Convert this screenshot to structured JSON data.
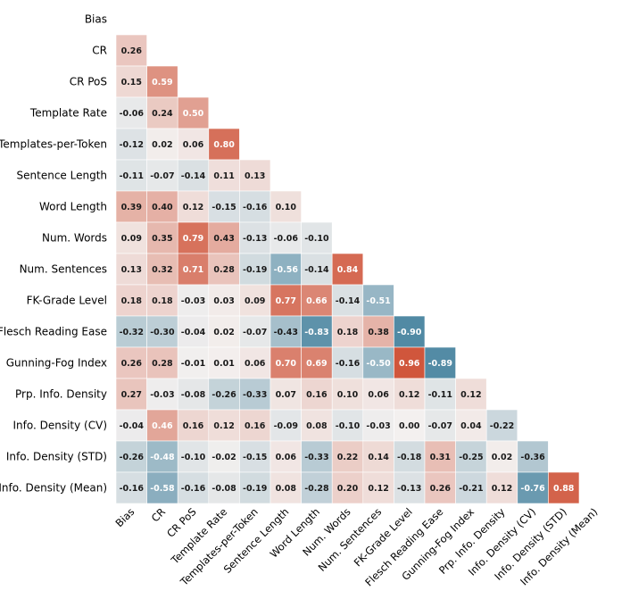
{
  "chart_data": {
    "type": "heatmap",
    "title": "",
    "variant": "lower-triangle correlation matrix",
    "color_scale": {
      "min": -1,
      "max": 1,
      "negative_color": "#3f7f9c",
      "neutral_color": "#f3f0ef",
      "positive_color": "#cf5035"
    },
    "labels": [
      "Bias",
      "CR",
      "CR PoS",
      "Template Rate",
      "Templates-per-Token",
      "Sentence Length",
      "Word Length",
      "Num. Words",
      "Num. Sentences",
      "FK-Grade Level",
      "Flesch Reading Ease",
      "Gunning-Fog Index",
      "Prp. Info. Density",
      "Info. Density (CV)",
      "Info. Density (STD)",
      "Info. Density (Mean)"
    ],
    "values": [
      [],
      [
        0.26
      ],
      [
        0.15,
        0.59
      ],
      [
        -0.06,
        0.24,
        0.5
      ],
      [
        -0.12,
        0.02,
        0.06,
        0.8
      ],
      [
        -0.11,
        -0.07,
        -0.14,
        0.11,
        0.13
      ],
      [
        0.39,
        0.4,
        0.12,
        -0.15,
        -0.16,
        0.1
      ],
      [
        0.09,
        0.35,
        0.79,
        0.43,
        -0.13,
        -0.06,
        -0.1
      ],
      [
        0.13,
        0.32,
        0.71,
        0.28,
        -0.19,
        -0.56,
        -0.14,
        0.84
      ],
      [
        0.18,
        0.18,
        -0.03,
        0.03,
        0.09,
        0.77,
        0.66,
        -0.14,
        -0.51
      ],
      [
        -0.32,
        -0.3,
        -0.04,
        0.02,
        -0.07,
        -0.43,
        -0.83,
        0.18,
        0.38,
        -0.9
      ],
      [
        0.26,
        0.28,
        -0.01,
        0.01,
        0.06,
        0.7,
        0.69,
        -0.16,
        -0.5,
        0.96,
        -0.89
      ],
      [
        0.27,
        -0.03,
        -0.08,
        -0.26,
        -0.33,
        0.07,
        0.16,
        0.1,
        0.06,
        0.12,
        -0.11,
        0.12
      ],
      [
        -0.04,
        0.46,
        0.16,
        0.12,
        0.16,
        -0.09,
        0.08,
        -0.1,
        -0.03,
        0.0,
        -0.07,
        0.04,
        -0.22
      ],
      [
        -0.26,
        -0.48,
        -0.1,
        -0.02,
        -0.15,
        0.06,
        -0.33,
        0.22,
        0.14,
        -0.18,
        0.31,
        -0.25,
        0.02,
        -0.36
      ],
      [
        -0.16,
        -0.58,
        -0.16,
        -0.08,
        -0.19,
        0.08,
        -0.28,
        0.2,
        0.12,
        -0.13,
        0.26,
        -0.21,
        0.12,
        -0.76,
        0.88
      ]
    ]
  }
}
